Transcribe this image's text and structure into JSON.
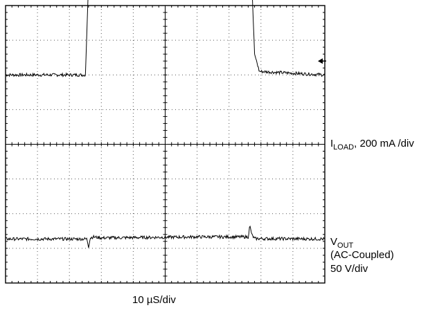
{
  "chart_data": {
    "type": "line",
    "title": "",
    "grid": true,
    "divisions": {
      "horizontal": 10,
      "vertical": 8
    },
    "xlabel": "10 µS/div",
    "x_unit": "div",
    "xlim": [
      0,
      10
    ],
    "series": [
      {
        "label_main": "I",
        "label_sub": "LOAD",
        "label_rest": ", 200 mA /div",
        "x": [
          0,
          2.5,
          2.6,
          2.75,
          3.0,
          4.0,
          5.0,
          6.0,
          7.0,
          7.7,
          7.8,
          7.95,
          10
        ],
        "y": [
          6.0,
          6.0,
          8.65,
          8.7,
          8.55,
          8.8,
          8.9,
          8.95,
          8.95,
          9.0,
          6.6,
          6.1,
          6.0
        ]
      },
      {
        "label_main": "V",
        "label_sub": "OUT",
        "label_line2": "(AC-Coupled)",
        "label_line3": "50 V/div",
        "x": [
          0,
          2.55,
          2.6,
          2.65,
          2.75,
          3.0,
          6.0,
          7.6,
          7.65,
          7.72,
          7.8,
          10
        ],
        "y": [
          1.27,
          1.27,
          1.05,
          1.3,
          1.33,
          1.3,
          1.33,
          1.33,
          1.65,
          1.38,
          1.28,
          1.27
        ]
      }
    ],
    "trigger_marker": "arrow"
  }
}
